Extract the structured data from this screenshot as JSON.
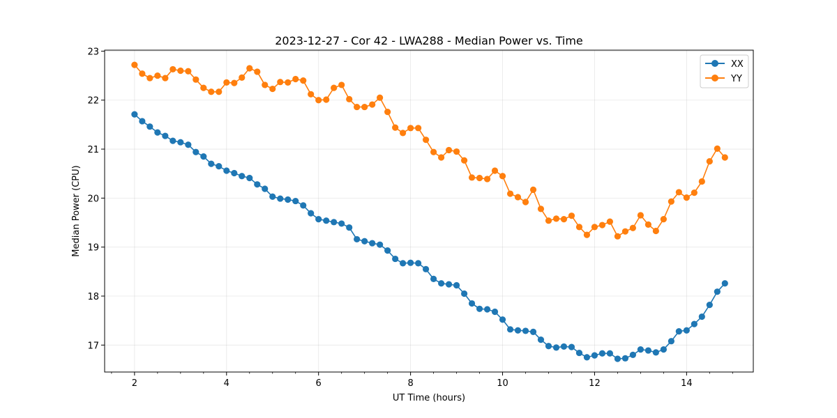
{
  "chart_data": {
    "type": "line",
    "title": "2023-12-27 - Cor 42 - LWA288 - Median Power vs. Time",
    "xlabel": "UT Time (hours)",
    "ylabel": "Median Power (CPU)",
    "xlim": [
      1.35,
      15.45
    ],
    "ylim": [
      16.45,
      23.02
    ],
    "xticks": [
      2,
      4,
      6,
      8,
      10,
      12,
      14
    ],
    "yticks": [
      17,
      18,
      19,
      20,
      21,
      22,
      23
    ],
    "xminor_step": 0.5,
    "grid": true,
    "legend_position": "top-right",
    "x": [
      2.0,
      2.167,
      2.333,
      2.5,
      2.667,
      2.833,
      3.0,
      3.167,
      3.333,
      3.5,
      3.667,
      3.833,
      4.0,
      4.167,
      4.333,
      4.5,
      4.667,
      4.833,
      5.0,
      5.167,
      5.333,
      5.5,
      5.667,
      5.833,
      6.0,
      6.167,
      6.333,
      6.5,
      6.667,
      6.833,
      7.0,
      7.167,
      7.333,
      7.5,
      7.667,
      7.833,
      8.0,
      8.167,
      8.333,
      8.5,
      8.667,
      8.833,
      9.0,
      9.167,
      9.333,
      9.5,
      9.667,
      9.833,
      10.0,
      10.167,
      10.333,
      10.5,
      10.667,
      10.833,
      11.0,
      11.167,
      11.333,
      11.5,
      11.667,
      11.833,
      12.0,
      12.167,
      12.333,
      12.5,
      12.667,
      12.833,
      13.0,
      13.167,
      13.333,
      13.5,
      13.667,
      13.833,
      14.0,
      14.167,
      14.333,
      14.5,
      14.667,
      14.833
    ],
    "series": [
      {
        "name": "XX",
        "color": "#1f77b4",
        "values": [
          21.71,
          21.57,
          21.46,
          21.34,
          21.27,
          21.17,
          21.14,
          21.09,
          20.94,
          20.85,
          20.7,
          20.65,
          20.56,
          20.51,
          20.45,
          20.41,
          20.28,
          20.19,
          20.03,
          19.99,
          19.97,
          19.94,
          19.85,
          19.69,
          19.57,
          19.54,
          19.51,
          19.48,
          19.4,
          19.16,
          19.12,
          19.08,
          19.05,
          18.93,
          18.76,
          18.67,
          18.68,
          18.67,
          18.55,
          18.35,
          18.26,
          18.24,
          18.22,
          18.05,
          17.85,
          17.74,
          17.73,
          17.68,
          17.52,
          17.32,
          17.3,
          17.29,
          17.27,
          17.11,
          16.98,
          16.95,
          16.97,
          16.96,
          16.84,
          16.75,
          16.79,
          16.83,
          16.83,
          16.72,
          16.73,
          16.8,
          16.91,
          16.89,
          16.85,
          16.91,
          17.08,
          17.28,
          17.3,
          17.43,
          17.58,
          17.82,
          18.09,
          18.26
        ]
      },
      {
        "name": "YY",
        "color": "#ff7f0e",
        "values": [
          22.72,
          22.54,
          22.45,
          22.5,
          22.45,
          22.63,
          22.6,
          22.59,
          22.42,
          22.25,
          22.17,
          22.17,
          22.36,
          22.35,
          22.46,
          22.65,
          22.58,
          22.31,
          22.23,
          22.37,
          22.36,
          22.43,
          22.4,
          22.12,
          22.0,
          22.01,
          22.25,
          22.31,
          22.02,
          21.86,
          21.86,
          21.91,
          22.05,
          21.76,
          21.44,
          21.33,
          21.43,
          21.43,
          21.19,
          20.94,
          20.83,
          20.98,
          20.95,
          20.77,
          20.42,
          20.41,
          20.39,
          20.56,
          20.45,
          20.09,
          20.02,
          19.92,
          20.17,
          19.78,
          19.54,
          19.58,
          19.57,
          19.64,
          19.41,
          19.25,
          19.41,
          19.45,
          19.52,
          19.22,
          19.32,
          19.39,
          19.65,
          19.46,
          19.33,
          19.57,
          19.93,
          20.12,
          20.01,
          20.11,
          20.34,
          20.75,
          21.01,
          20.83
        ]
      }
    ]
  }
}
